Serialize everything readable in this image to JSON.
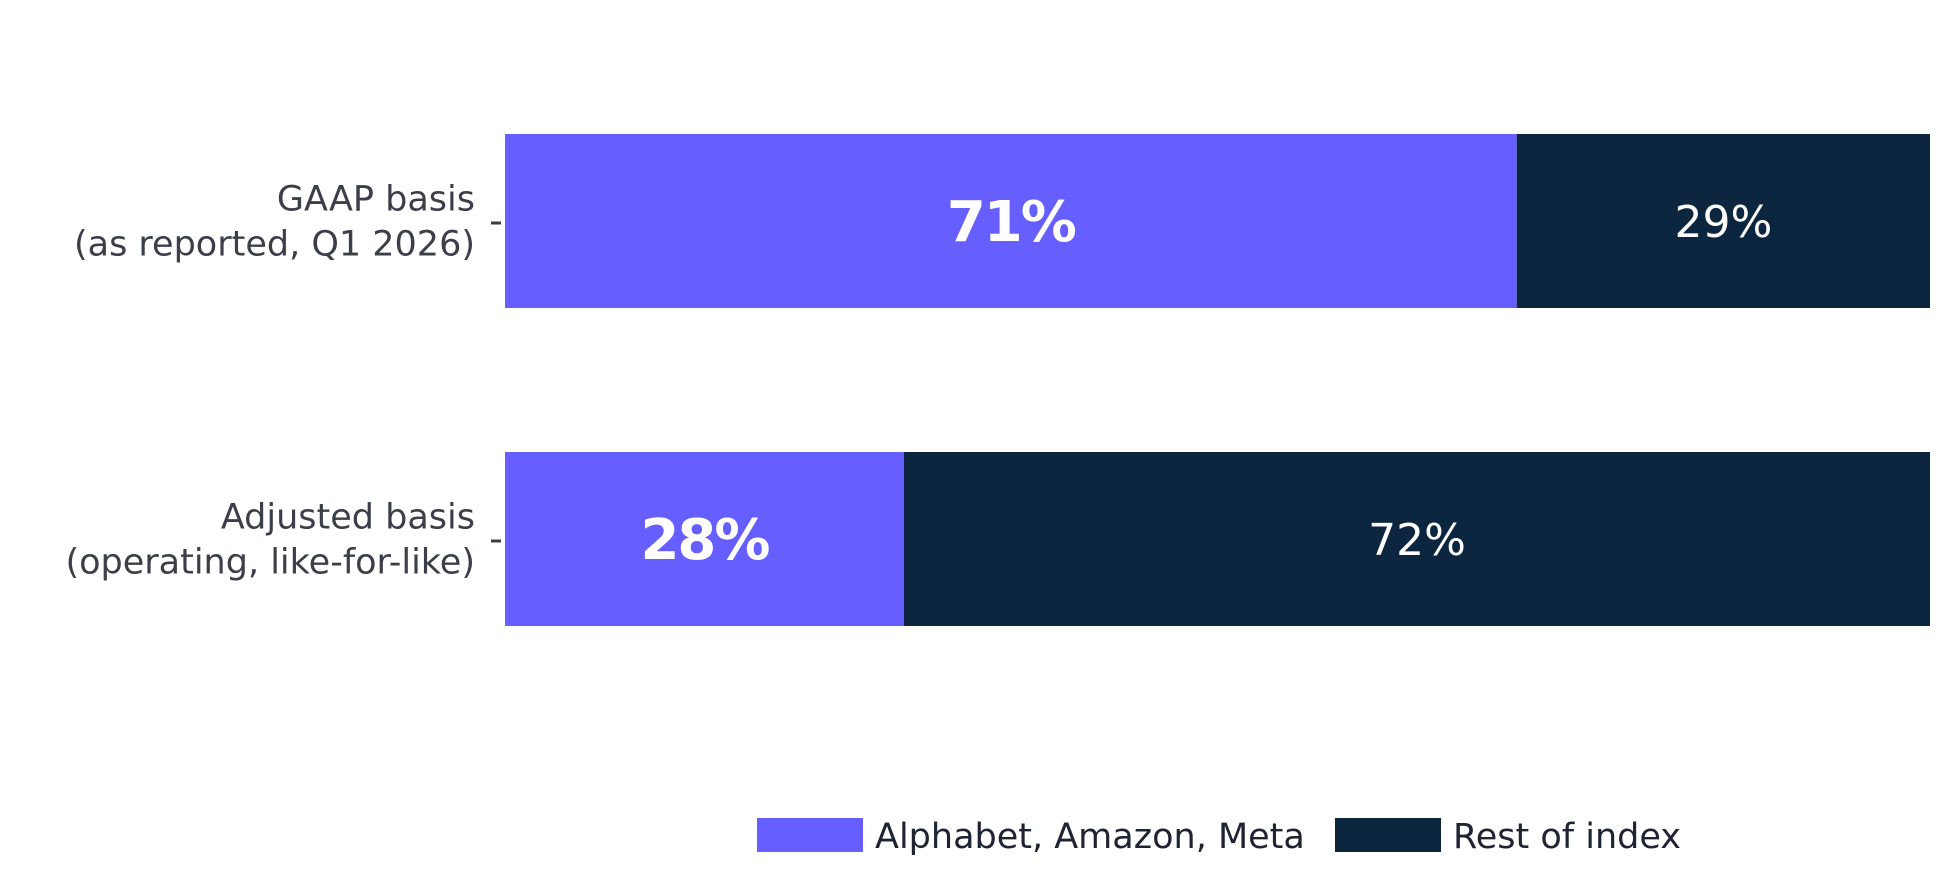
{
  "chart_data": {
    "type": "bar",
    "orientation": "horizontal",
    "stacked": true,
    "title": "",
    "xlabel": "",
    "ylabel": "",
    "xlim": [
      0,
      100
    ],
    "grid": false,
    "legend_position": "bottom",
    "categories": [
      [
        "GAAP basis",
        "(as reported, Q1 2026)"
      ],
      [
        "Adjusted basis",
        "(operating, like-for-like)"
      ]
    ],
    "series": [
      {
        "name": "Alphabet, Amazon, Meta",
        "color": "#665eff",
        "values": [
          71,
          28
        ],
        "labels": [
          "71%",
          "28%"
        ],
        "label_bold": true
      },
      {
        "name": "Rest of index",
        "color": "#0c2640",
        "values": [
          29,
          72
        ],
        "labels": [
          "29%",
          "72%"
        ],
        "label_bold": false
      }
    ]
  }
}
